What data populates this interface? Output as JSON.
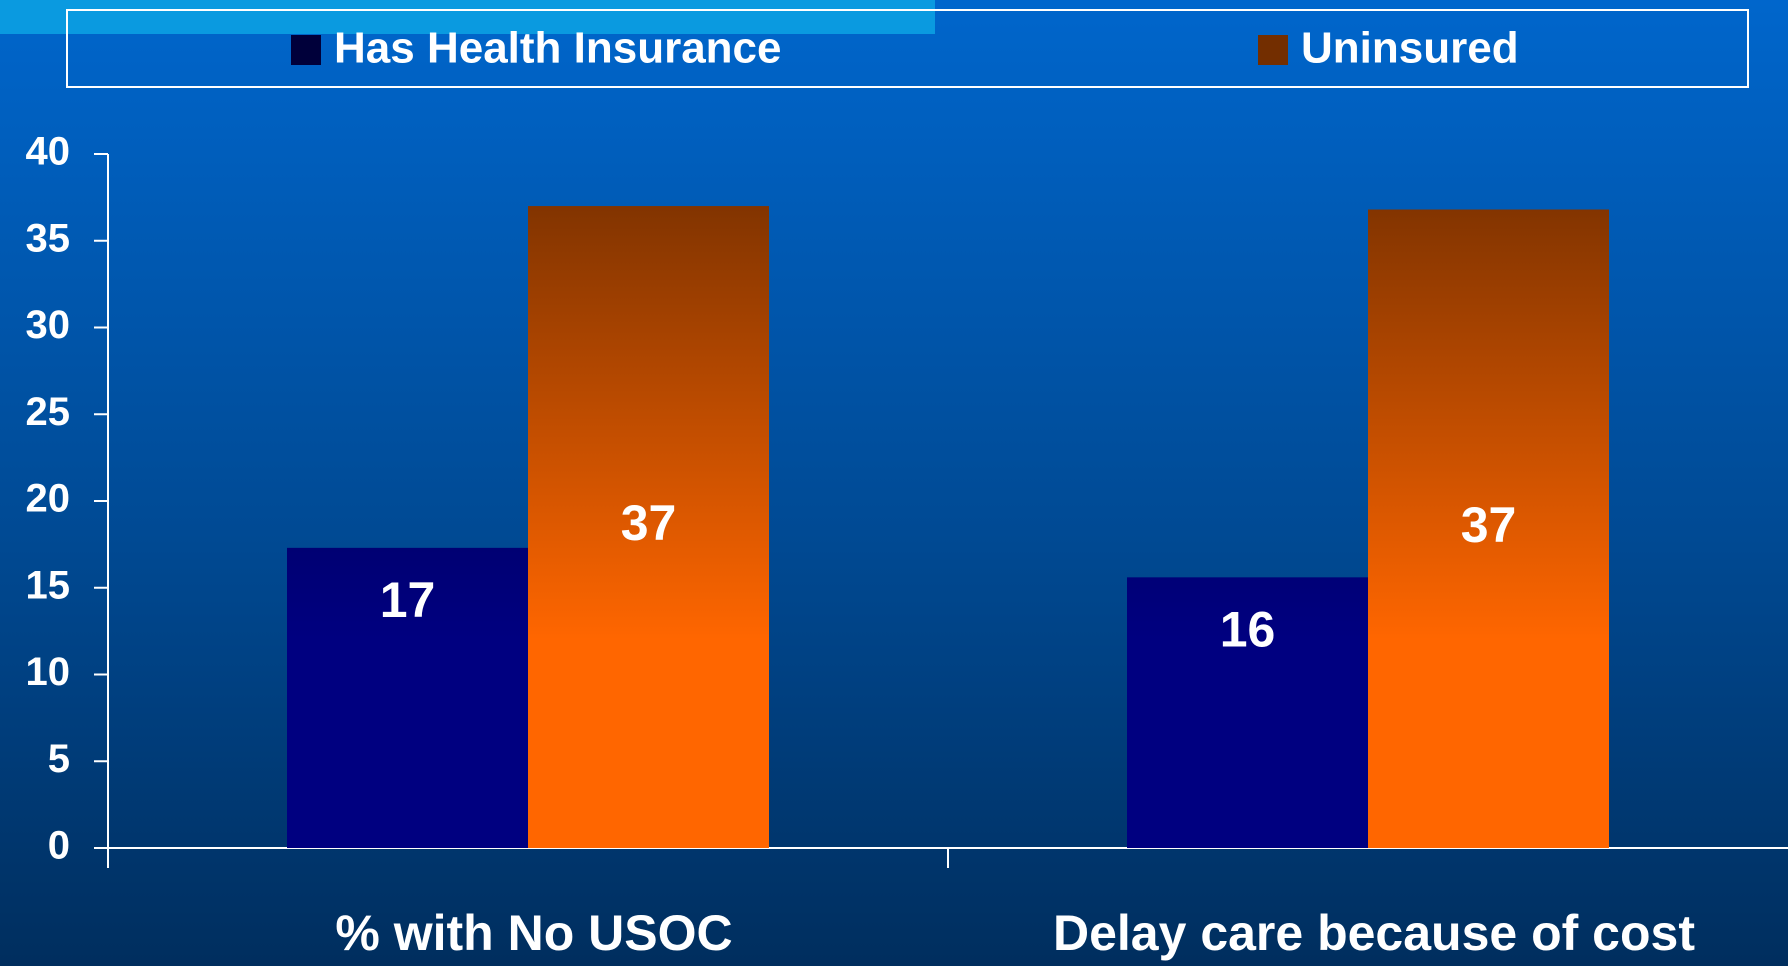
{
  "chart_data": {
    "type": "bar",
    "categories": [
      "% with No USOC",
      "Delay care because of cost"
    ],
    "series": [
      {
        "name": "Has Health Insurance",
        "color": "#000080",
        "values": [
          17.3,
          15.6
        ],
        "value_labels": [
          "17",
          "16"
        ]
      },
      {
        "name": "Uninsured",
        "color": "#ff6600",
        "values": [
          37,
          36.8
        ],
        "value_labels": [
          "37",
          "37"
        ]
      }
    ],
    "ylim": [
      0,
      40
    ],
    "yticks": [
      0,
      5,
      10,
      15,
      20,
      25,
      30,
      35,
      40
    ],
    "grid": false,
    "legend": "top"
  }
}
